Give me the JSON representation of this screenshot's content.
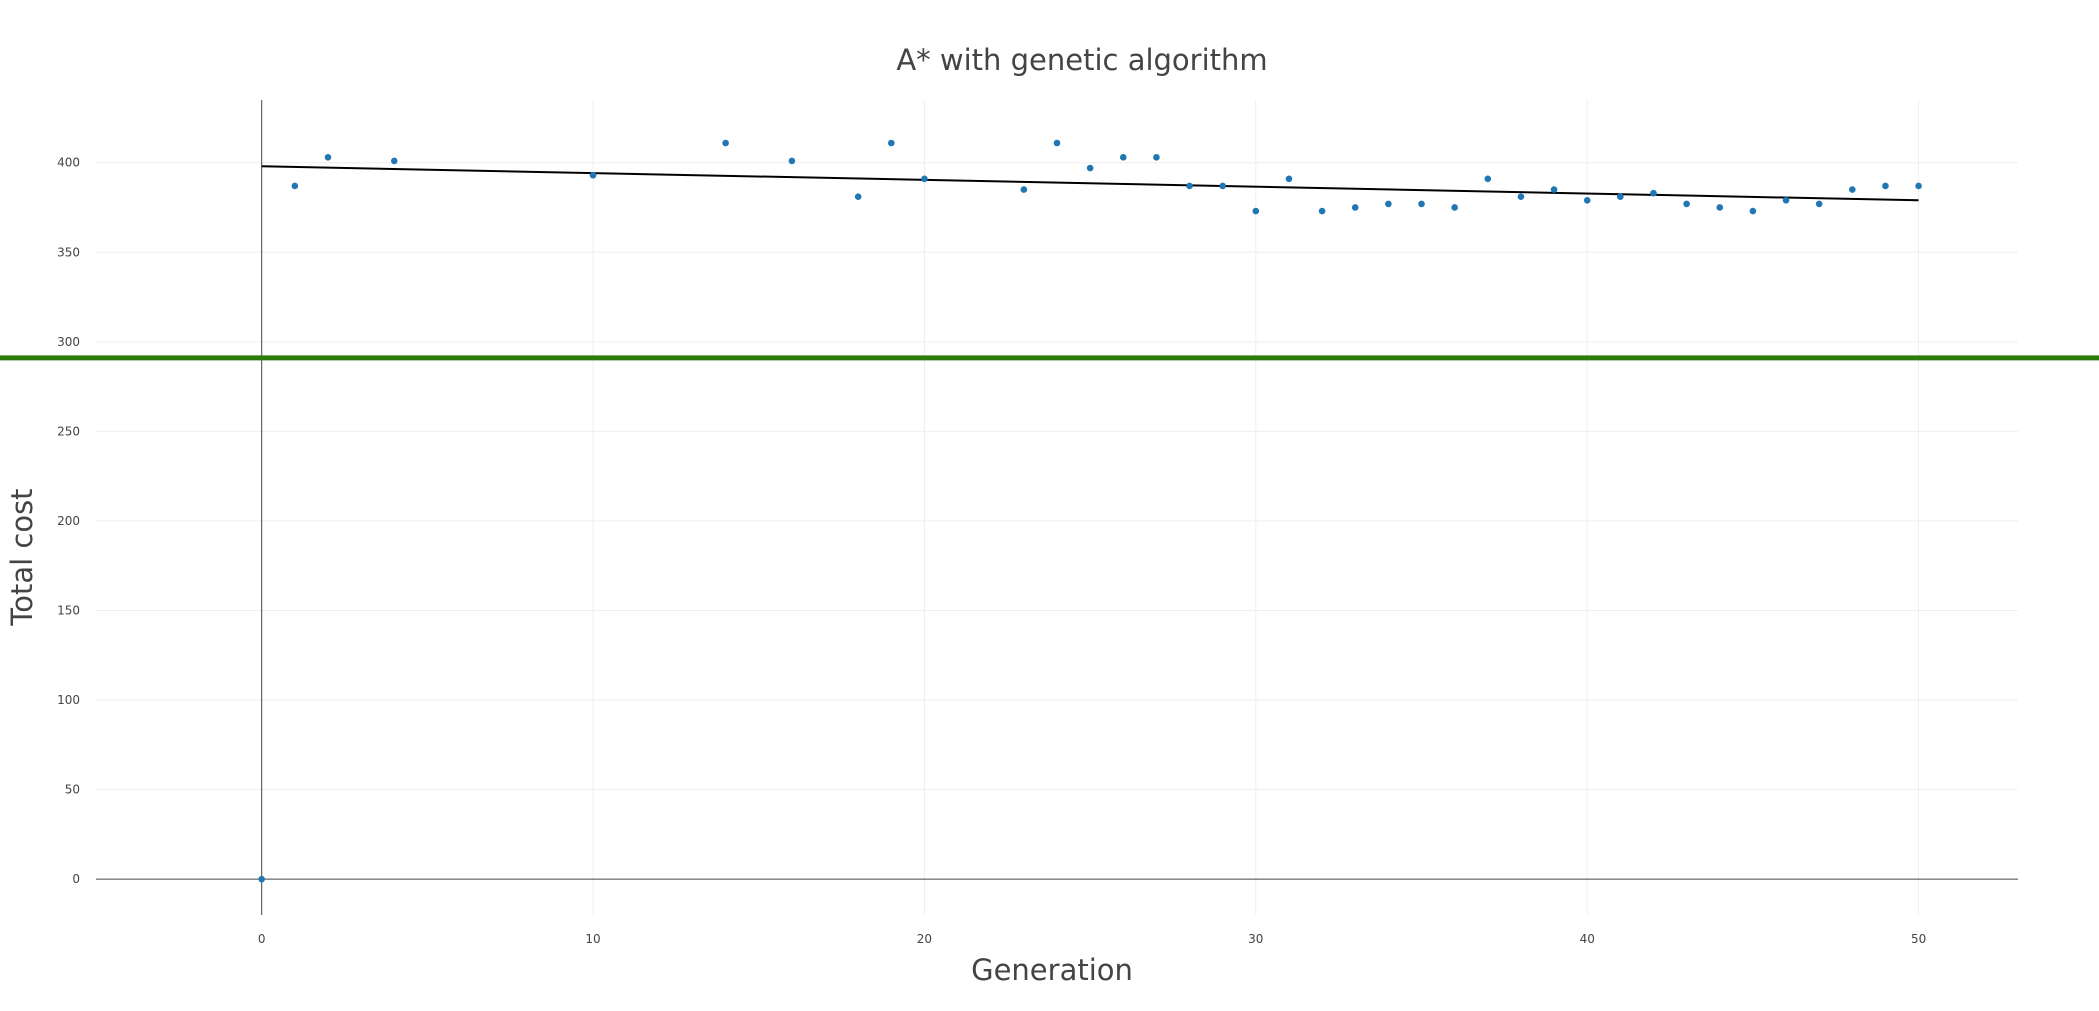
{
  "chart_data": {
    "type": "scatter",
    "title": "A* with genetic algorithm",
    "xlabel": "Generation",
    "ylabel": "Total cost",
    "xlim": [
      -5,
      53
    ],
    "ylim": [
      -20,
      435
    ],
    "x_ticks": [
      0,
      10,
      20,
      30,
      40,
      50
    ],
    "y_ticks": [
      0,
      50,
      100,
      150,
      200,
      250,
      300,
      350,
      400
    ],
    "grid": true,
    "colors": {
      "points": "#1f77b4",
      "trendline": "#000000",
      "reference_line": "#2d7c0b",
      "grid": "#eeeeee",
      "axis": "#444444"
    },
    "series": [
      {
        "values": [
          {
            "x": 0,
            "y": 0
          },
          {
            "x": 1,
            "y": 387
          },
          {
            "x": 2,
            "y": 403
          },
          {
            "x": 4,
            "y": 401
          },
          {
            "x": 10,
            "y": 393
          },
          {
            "x": 14,
            "y": 411
          },
          {
            "x": 16,
            "y": 401
          },
          {
            "x": 18,
            "y": 381
          },
          {
            "x": 19,
            "y": 411
          },
          {
            "x": 20,
            "y": 391
          },
          {
            "x": 23,
            "y": 385
          },
          {
            "x": 24,
            "y": 411
          },
          {
            "x": 25,
            "y": 397
          },
          {
            "x": 26,
            "y": 403
          },
          {
            "x": 27,
            "y": 403
          },
          {
            "x": 28,
            "y": 387
          },
          {
            "x": 29,
            "y": 387
          },
          {
            "x": 30,
            "y": 373
          },
          {
            "x": 31,
            "y": 391
          },
          {
            "x": 32,
            "y": 373
          },
          {
            "x": 33,
            "y": 375
          },
          {
            "x": 34,
            "y": 377
          },
          {
            "x": 35,
            "y": 377
          },
          {
            "x": 36,
            "y": 375
          },
          {
            "x": 37,
            "y": 391
          },
          {
            "x": 38,
            "y": 381
          },
          {
            "x": 39,
            "y": 385
          },
          {
            "x": 40,
            "y": 379
          },
          {
            "x": 41,
            "y": 381
          },
          {
            "x": 42,
            "y": 383
          },
          {
            "x": 43,
            "y": 377
          },
          {
            "x": 44,
            "y": 375
          },
          {
            "x": 45,
            "y": 373
          },
          {
            "x": 46,
            "y": 379
          },
          {
            "x": 47,
            "y": 377
          },
          {
            "x": 48,
            "y": 385
          },
          {
            "x": 49,
            "y": 387
          },
          {
            "x": 50,
            "y": 387
          }
        ]
      }
    ],
    "trendline": {
      "x": [
        0,
        50
      ],
      "y": [
        398,
        379
      ]
    },
    "reference_line": {
      "y": 291
    }
  }
}
